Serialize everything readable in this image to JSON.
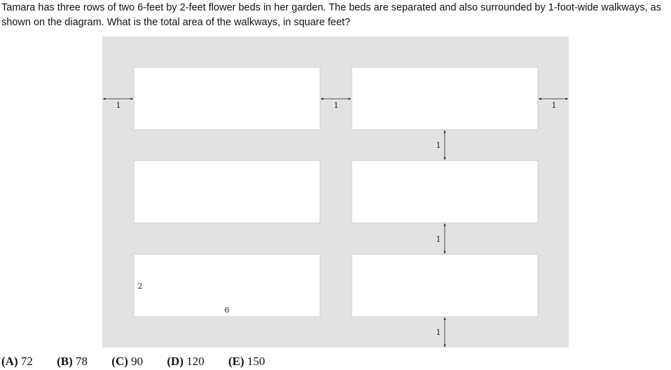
{
  "question": {
    "text": "Tamara has three rows of two 6-feet by 2-feet flower beds in her garden. The beds are separated and also surrounded by 1-foot-wide walkways, as shown on the diagram. What is the total area of the walkways, in square feet?"
  },
  "diagram": {
    "colors": {
      "walkway": "#e2e2e2",
      "bed": "#ffffff",
      "bed_border": "#cfcfcf",
      "arrow": "#222222"
    },
    "labels": {
      "left_gap": "1",
      "middle_gap": "1",
      "right_gap": "1",
      "row_gap_1": "1",
      "row_gap_2": "1",
      "bottom_gap": "1",
      "bed_height": "2",
      "bed_width": "6"
    }
  },
  "choices": [
    {
      "letter": "(A)",
      "value": "72"
    },
    {
      "letter": "(B)",
      "value": "78"
    },
    {
      "letter": "(C)",
      "value": "90"
    },
    {
      "letter": "(D)",
      "value": "120"
    },
    {
      "letter": "(E)",
      "value": "150"
    }
  ]
}
